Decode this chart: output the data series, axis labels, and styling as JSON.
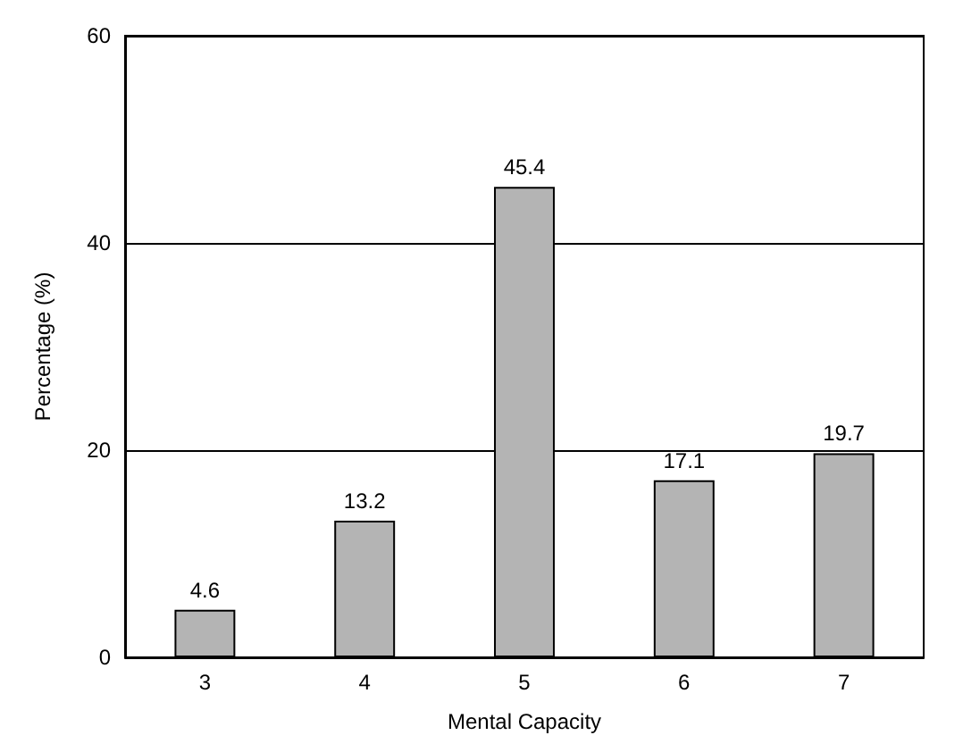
{
  "chart_data": {
    "type": "bar",
    "xlabel": "Mental Capacity",
    "ylabel": "Percentage (%)",
    "categories": [
      "3",
      "4",
      "5",
      "6",
      "7"
    ],
    "values": [
      4.6,
      13.2,
      45.4,
      17.1,
      19.7
    ],
    "color": "#b4b4b4",
    "ylim": [
      0,
      60
    ],
    "yticks": [
      0,
      20,
      40,
      60
    ],
    "grid": "y",
    "data_labels": true
  }
}
